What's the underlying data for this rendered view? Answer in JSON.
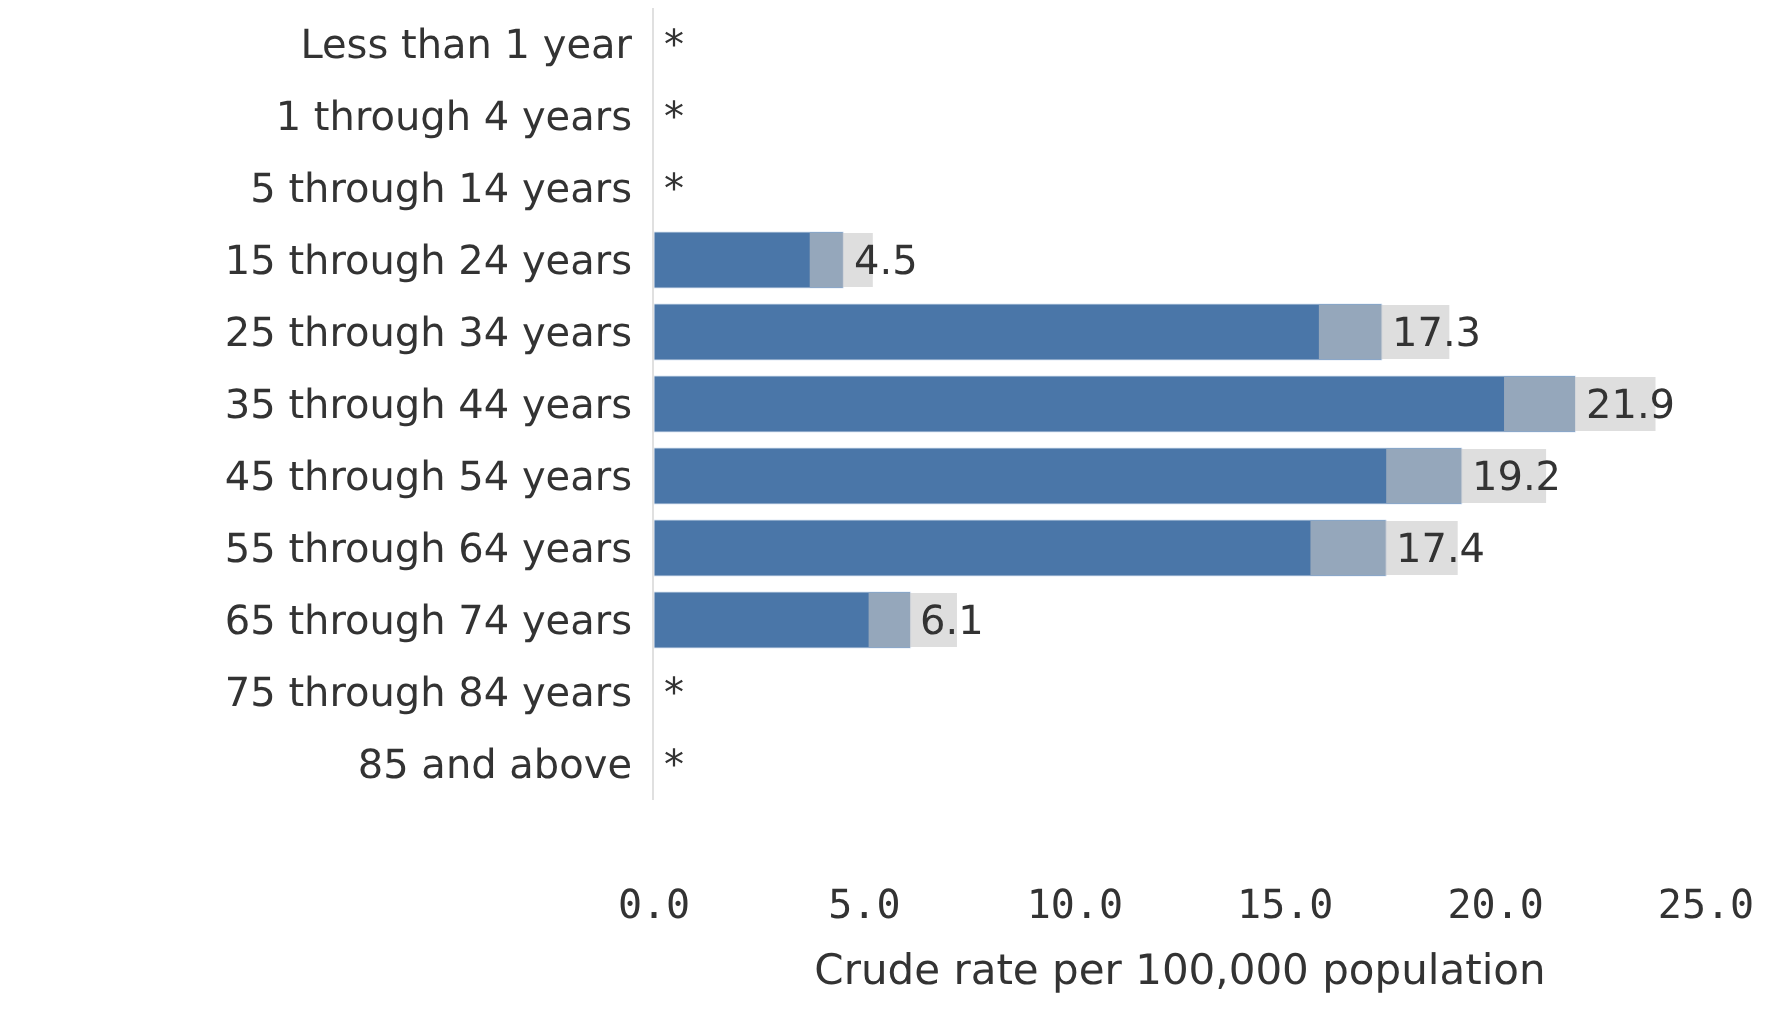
{
  "chart_data": {
    "type": "bar",
    "orientation": "horizontal",
    "xlabel": "Crude rate per 100,000 population",
    "categories": [
      "Less than 1 year",
      "1 through 4 years",
      "5 through 14 years",
      "15 through 24 years",
      "25 through 34 years",
      "35 through 44 years",
      "45 through 54 years",
      "55 through 64 years",
      "65 through 74 years",
      "75 through 84 years",
      "85 and above"
    ],
    "values": [
      null,
      null,
      null,
      4.5,
      17.3,
      21.9,
      19.2,
      17.4,
      6.1,
      null,
      null
    ],
    "value_labels": [
      "*",
      "*",
      "*",
      "4.5",
      "17.3",
      "21.9",
      "19.2",
      "17.4",
      "6.1",
      "*",
      "*"
    ],
    "errors": [
      null,
      null,
      null,
      [
        3.7,
        5.2
      ],
      [
        15.8,
        18.9
      ],
      [
        20.2,
        23.8
      ],
      [
        17.4,
        21.2
      ],
      [
        15.6,
        19.1
      ],
      [
        5.1,
        7.2
      ],
      null,
      null
    ],
    "color": "#4a76a8",
    "xlim": [
      0,
      25
    ],
    "xticks": [
      {
        "value": 0,
        "label": "0.0"
      },
      {
        "value": 5,
        "label": "5.0"
      },
      {
        "value": 10,
        "label": "10.0"
      },
      {
        "value": 15,
        "label": "15.0"
      },
      {
        "value": 20,
        "label": "20.0"
      },
      {
        "value": 25,
        "label": "25.0"
      }
    ],
    "legend": false
  }
}
